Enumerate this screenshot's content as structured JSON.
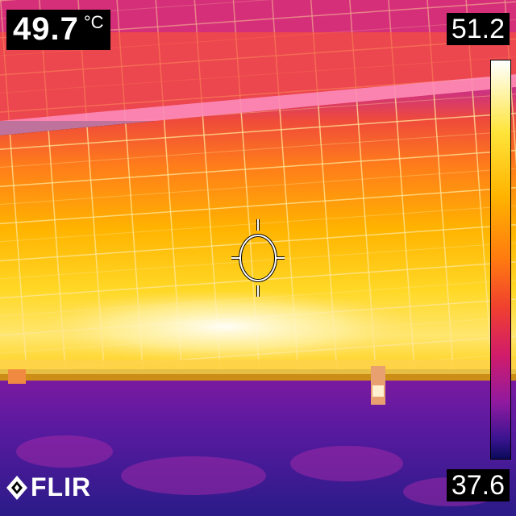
{
  "readout": {
    "value": "49.7",
    "unit": "°C"
  },
  "scale": {
    "max": "51.2",
    "min": "37.6"
  },
  "logo": {
    "text": "FLIR"
  },
  "icons": {
    "crosshair": "spot-meter-crosshair-icon",
    "logo_mark": "flir-diamond-icon"
  },
  "colors": {
    "hot": "#ffffff",
    "warm": "#ffd21e",
    "mid": "#ff7a10",
    "cool": "#c3169a",
    "cold": "#2a1b88",
    "grid_lines": "#ffe07a"
  }
}
